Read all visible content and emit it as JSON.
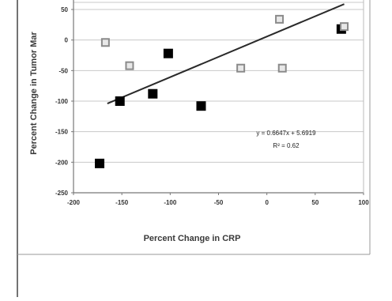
{
  "chart_data": {
    "type": "scatter",
    "xlabel": "Percent Change in CRP",
    "ylabel": "Percent Change in Tumor Mar",
    "xlim": [
      -200,
      100
    ],
    "ylim": [
      -250,
      50
    ],
    "x_ticks": [
      -200,
      -150,
      -100,
      -50,
      0,
      50,
      100
    ],
    "y_ticks": [
      -250,
      -200,
      -150,
      -100,
      -50,
      0,
      50
    ],
    "grid": "horizontal",
    "series": [
      {
        "marker": "filled-square",
        "color": "#000000",
        "points": [
          {
            "x": -173,
            "y": -202
          },
          {
            "x": -152,
            "y": -100
          },
          {
            "x": -118,
            "y": -88
          },
          {
            "x": -102,
            "y": -22
          },
          {
            "x": -68,
            "y": -108
          },
          {
            "x": 77,
            "y": 18
          }
        ]
      },
      {
        "marker": "hollow-square",
        "color": "#8a8a8a",
        "points": [
          {
            "x": -167,
            "y": -4
          },
          {
            "x": -142,
            "y": -42
          },
          {
            "x": -27,
            "y": -46
          },
          {
            "x": 13,
            "y": 34
          },
          {
            "x": 16,
            "y": -46
          },
          {
            "x": 80,
            "y": 22
          }
        ]
      }
    ],
    "trendline": {
      "x_start": -165,
      "x_end": 80,
      "equation_label": "y = 0.6647x + 5.6919",
      "r2_label": "R² = 0.62"
    }
  }
}
